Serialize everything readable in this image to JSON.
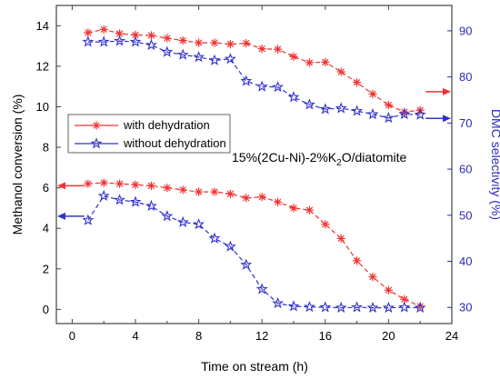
{
  "chart_data": {
    "type": "line",
    "xlabel": "Time on stream (h)",
    "ylabel_left": "Methanol conversion (%)",
    "ylabel_right": "DMC selectivity (%)",
    "annotation": {
      "prefix": "15%(2Cu-Ni)-2%K",
      "sub": "2",
      "suffix": "O/diatomite"
    },
    "xlim": [
      -1,
      24
    ],
    "ylim_left": [
      -0.7,
      15.0
    ],
    "ylim_right": [
      26.5,
      95.5
    ],
    "x_ticks": [
      0,
      4,
      8,
      12,
      16,
      20,
      24
    ],
    "y_left_ticks": [
      0,
      2,
      4,
      6,
      8,
      10,
      12,
      14
    ],
    "y_right_ticks": [
      30,
      40,
      50,
      60,
      70,
      80,
      90
    ],
    "legend": {
      "placement": "left",
      "entries": [
        {
          "label": "with dehydration",
          "color": "#ee3333",
          "marker": "asterisk"
        },
        {
          "label": "without dehydration",
          "color": "#3333cc",
          "marker": "star"
        }
      ]
    },
    "x": [
      1,
      2,
      3,
      4,
      5,
      6,
      7,
      8,
      9,
      10,
      11,
      12,
      13,
      14,
      15,
      16,
      17,
      18,
      19,
      20,
      21,
      22
    ],
    "series": [
      {
        "name": "with dehydration",
        "measure": "DMC selectivity",
        "axis": "right",
        "color": "#ee3333",
        "marker": "asterisk",
        "values": [
          89.6,
          90.3,
          89.4,
          89.1,
          89.0,
          88.4,
          87.9,
          87.4,
          87.4,
          87.1,
          87.3,
          86.1,
          86.0,
          84.4,
          83.1,
          83.2,
          81.1,
          78.8,
          76.3,
          73.9,
          72.4,
          72.8
        ]
      },
      {
        "name": "without dehydration",
        "measure": "DMC selectivity",
        "axis": "right",
        "color": "#3333cc",
        "marker": "star",
        "values": [
          87.6,
          87.6,
          87.8,
          87.6,
          86.9,
          85.4,
          84.8,
          84.3,
          83.6,
          83.9,
          79.1,
          77.9,
          77.8,
          75.6,
          74.0,
          73.0,
          73.2,
          72.6,
          71.9,
          71.1,
          71.9,
          71.8
        ]
      },
      {
        "name": "with dehydration",
        "measure": "Methanol conversion",
        "axis": "left",
        "color": "#ee3333",
        "marker": "asterisk",
        "values": [
          6.2,
          6.25,
          6.2,
          6.15,
          6.1,
          6.0,
          5.9,
          5.8,
          5.8,
          5.7,
          5.5,
          5.55,
          5.3,
          5.0,
          4.9,
          4.2,
          3.5,
          2.4,
          1.6,
          0.95,
          0.5,
          0.15
        ]
      },
      {
        "name": "without dehydration",
        "measure": "Methanol conversion",
        "axis": "left",
        "color": "#3333cc",
        "marker": "star",
        "values": [
          4.4,
          5.6,
          5.4,
          5.3,
          5.1,
          4.6,
          4.3,
          4.2,
          3.5,
          3.1,
          2.2,
          1.0,
          0.3,
          0.15,
          0.12,
          0.1,
          0.08,
          0.1,
          0.08,
          0.08,
          0.1,
          0.08
        ]
      }
    ],
    "axis_arrows": [
      {
        "target": "left",
        "color": "#ee3333",
        "y": 6.1
      },
      {
        "target": "left",
        "color": "#3333cc",
        "y": 4.6
      },
      {
        "target": "right",
        "color": "#ee3333",
        "y": 76.8
      },
      {
        "target": "right",
        "color": "#3333cc",
        "y": 71.0
      }
    ]
  }
}
